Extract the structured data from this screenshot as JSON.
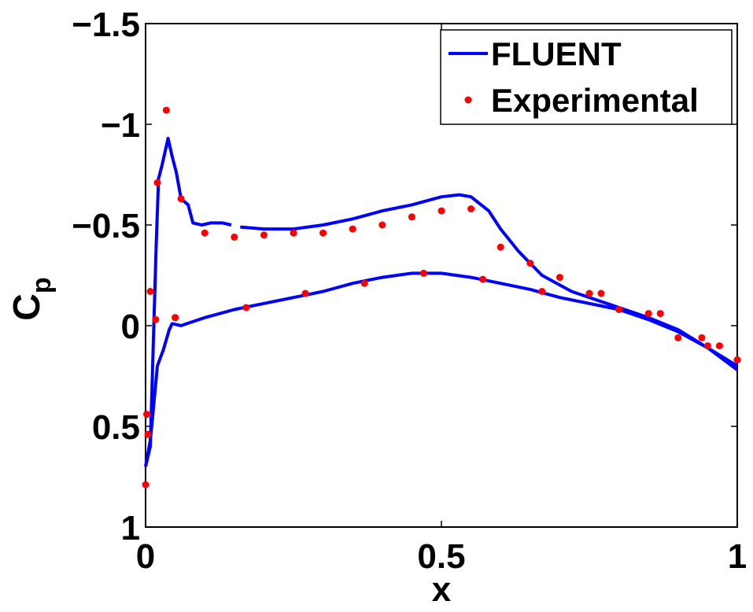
{
  "chart_data": {
    "type": "line",
    "xlabel": "x",
    "ylabel_main": "C",
    "ylabel_sub": "p",
    "xlim": [
      0,
      1
    ],
    "ylim": [
      -1.5,
      1
    ],
    "y_reversed": true,
    "x_ticks": [
      0,
      0.5,
      1
    ],
    "x_tick_labels": [
      "0",
      "0.5",
      "1"
    ],
    "y_ticks": [
      -1.5,
      -1,
      -0.5,
      0,
      0.5,
      1
    ],
    "y_tick_labels": [
      "−1.5",
      "−1",
      "−0.5",
      "0",
      "0.5",
      "1"
    ],
    "grid": false,
    "legend_position": "top-right",
    "colors": {
      "fluent": "#0000ff",
      "experimental": "#ff0000"
    },
    "series": [
      {
        "name": "FLUENT",
        "kind": "line",
        "segments": [
          [
            [
              0.0,
              0.7
            ],
            [
              0.008,
              0.6
            ],
            [
              0.012,
              0.2
            ],
            [
              0.018,
              -0.4
            ],
            [
              0.022,
              -0.73
            ],
            [
              0.028,
              -0.8
            ],
            [
              0.038,
              -0.93
            ],
            [
              0.045,
              -0.84
            ],
            [
              0.052,
              -0.76
            ],
            [
              0.06,
              -0.63
            ],
            [
              0.072,
              -0.6
            ],
            [
              0.08,
              -0.51
            ],
            [
              0.095,
              -0.5
            ],
            [
              0.11,
              -0.51
            ],
            [
              0.13,
              -0.51
            ],
            [
              0.145,
              -0.5
            ]
          ],
          [
            [
              0.16,
              -0.49
            ],
            [
              0.2,
              -0.48
            ],
            [
              0.25,
              -0.48
            ],
            [
              0.3,
              -0.5
            ],
            [
              0.35,
              -0.53
            ],
            [
              0.4,
              -0.57
            ],
            [
              0.45,
              -0.6
            ],
            [
              0.5,
              -0.64
            ],
            [
              0.53,
              -0.65
            ],
            [
              0.55,
              -0.64
            ],
            [
              0.58,
              -0.57
            ],
            [
              0.6,
              -0.48
            ],
            [
              0.63,
              -0.37
            ],
            [
              0.67,
              -0.25
            ],
            [
              0.72,
              -0.17
            ],
            [
              0.8,
              -0.09
            ],
            [
              0.85,
              -0.04
            ],
            [
              0.9,
              0.02
            ],
            [
              0.95,
              0.11
            ],
            [
              1.0,
              0.22
            ]
          ],
          [
            [
              0.0,
              0.7
            ],
            [
              0.008,
              0.57
            ],
            [
              0.012,
              0.45
            ],
            [
              0.02,
              0.2
            ],
            [
              0.03,
              0.12
            ],
            [
              0.04,
              0.02
            ],
            [
              0.045,
              -0.01
            ],
            [
              0.06,
              0.0
            ],
            [
              0.07,
              -0.01
            ],
            [
              0.1,
              -0.04
            ],
            [
              0.15,
              -0.08
            ],
            [
              0.2,
              -0.11
            ],
            [
              0.25,
              -0.14
            ],
            [
              0.3,
              -0.17
            ],
            [
              0.35,
              -0.21
            ],
            [
              0.4,
              -0.24
            ],
            [
              0.45,
              -0.26
            ],
            [
              0.5,
              -0.26
            ],
            [
              0.55,
              -0.24
            ],
            [
              0.6,
              -0.21
            ],
            [
              0.65,
              -0.18
            ],
            [
              0.7,
              -0.14
            ],
            [
              0.75,
              -0.11
            ],
            [
              0.8,
              -0.08
            ],
            [
              0.85,
              -0.03
            ],
            [
              0.9,
              0.03
            ],
            [
              0.95,
              0.11
            ],
            [
              1.0,
              0.2
            ]
          ]
        ]
      },
      {
        "name": "Experimental",
        "kind": "scatter",
        "x": [
          0.0,
          0.002,
          0.004,
          0.008,
          0.02,
          0.035,
          0.05,
          0.06,
          0.1,
          0.15,
          0.2,
          0.25,
          0.3,
          0.35,
          0.4,
          0.45,
          0.5,
          0.55,
          0.6,
          0.65,
          0.7,
          0.75,
          0.8,
          0.85,
          0.9,
          0.95,
          1.0,
          0.017,
          0.05,
          0.17,
          0.27,
          0.37,
          0.47,
          0.57,
          0.67,
          0.77,
          0.87,
          0.94,
          0.97,
          1.0
        ],
        "y": [
          0.79,
          0.44,
          0.54,
          -0.17,
          -0.71,
          -1.07,
          -0.04,
          -0.63,
          -0.46,
          -0.44,
          -0.45,
          -0.46,
          -0.46,
          -0.48,
          -0.5,
          -0.54,
          -0.57,
          -0.58,
          -0.39,
          -0.31,
          -0.24,
          -0.16,
          -0.08,
          -0.06,
          0.06,
          0.1,
          0.17,
          -0.03,
          -0.04,
          -0.09,
          -0.16,
          -0.21,
          -0.26,
          -0.23,
          -0.17,
          -0.16,
          -0.06,
          0.06,
          0.1,
          0.17
        ]
      }
    ]
  }
}
